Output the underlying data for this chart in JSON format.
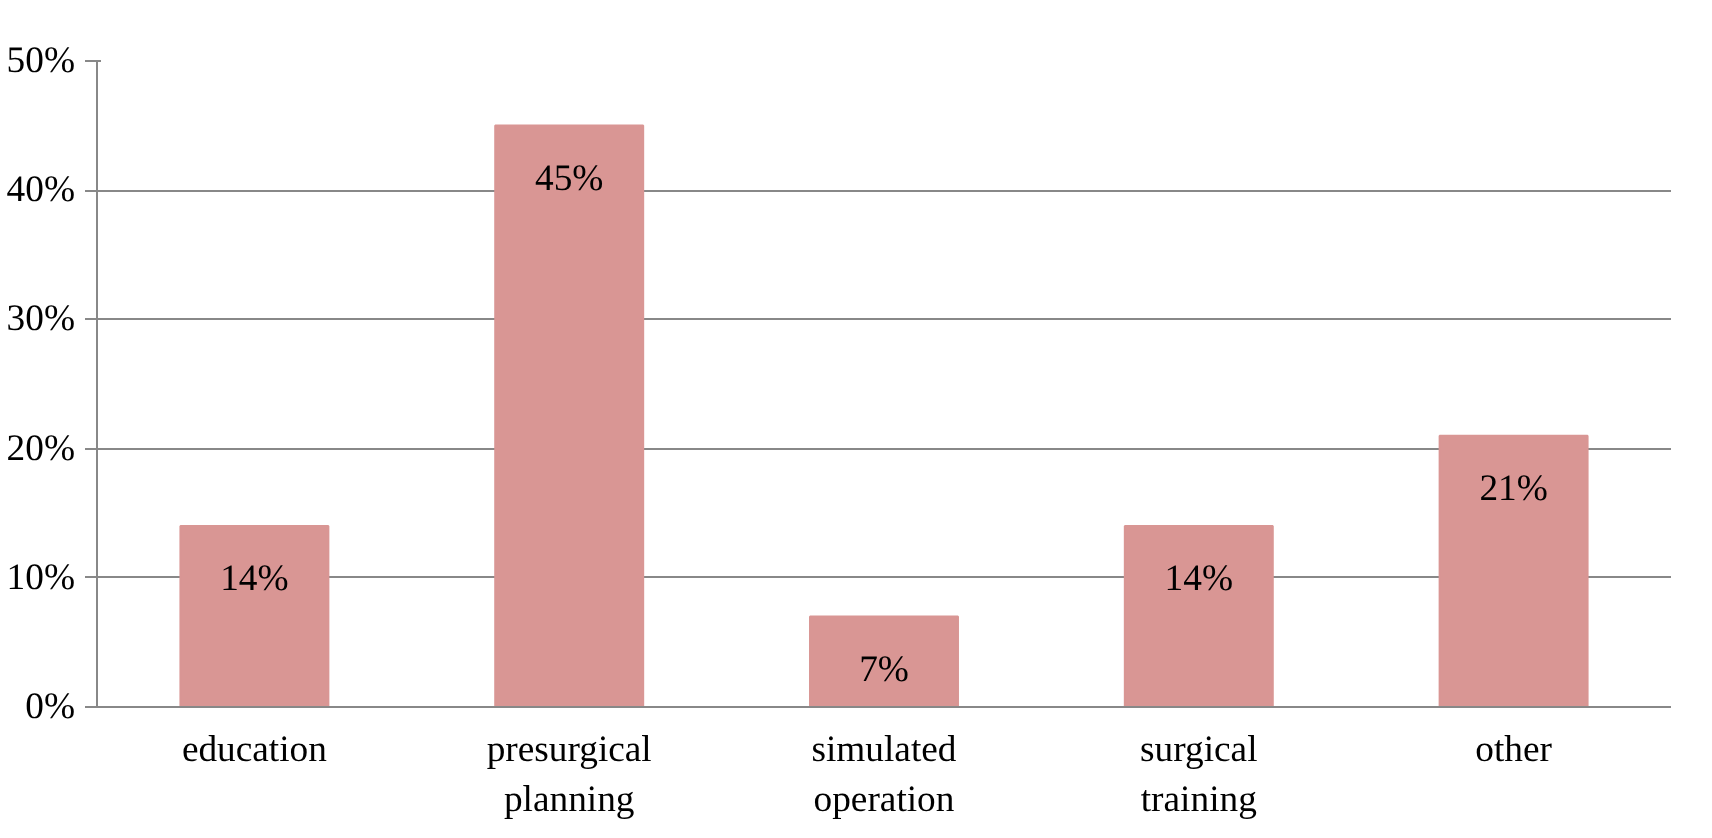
{
  "chart_data": {
    "type": "bar",
    "categories": [
      "education",
      "presurgical planning",
      "simulated operation",
      "surgical training",
      "other"
    ],
    "values": [
      14,
      45,
      7,
      14,
      21
    ],
    "value_labels": [
      "14%",
      "45%",
      "7%",
      "14%",
      "21%"
    ],
    "color": "#d99694",
    "ylim": [
      0,
      50
    ],
    "yticks": [
      {
        "value": 0,
        "label": "0%"
      },
      {
        "value": 10,
        "label": "10%"
      },
      {
        "value": 20,
        "label": "20%"
      },
      {
        "value": 30,
        "label": "30%"
      },
      {
        "value": 40,
        "label": "40%"
      },
      {
        "value": 50,
        "label": "50%"
      }
    ],
    "grid": "y"
  }
}
